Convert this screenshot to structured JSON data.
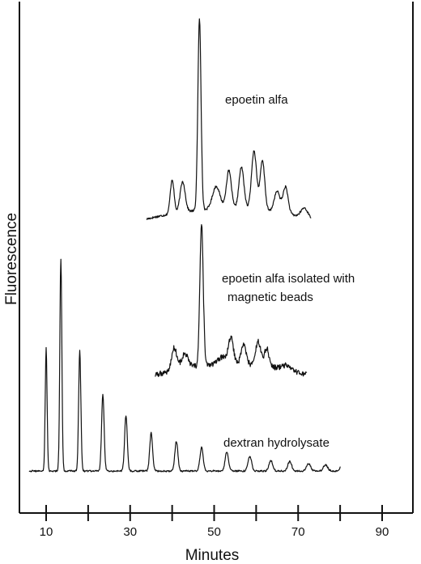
{
  "chart_data": {
    "type": "line",
    "title": "",
    "xlabel": "Minutes",
    "ylabel": "Fluorescence",
    "xlim": [
      5,
      100
    ],
    "x_ticks": [
      10,
      20,
      30,
      40,
      50,
      60,
      70,
      80,
      90
    ],
    "x_tick_labels": [
      {
        "value": 10,
        "label": "10"
      },
      {
        "value": 30,
        "label": "30"
      },
      {
        "value": 50,
        "label": "50"
      },
      {
        "value": 70,
        "label": "70"
      },
      {
        "value": 90,
        "label": "90"
      }
    ],
    "y_ticks": false,
    "grid": false,
    "legend": "none",
    "annotations": [
      {
        "id": "anno-epoetin",
        "text": "epoetin alfa"
      },
      {
        "id": "anno-beads-1",
        "text": "epoetin alfa isolated with"
      },
      {
        "id": "anno-beads-2",
        "text": "magnetic beads"
      },
      {
        "id": "anno-dextran",
        "text": "dextran hydrolysate"
      }
    ],
    "series": [
      {
        "id": "epoetin-alfa",
        "label": "epoetin alfa",
        "x_range": [
          34,
          73
        ],
        "baseline": 0.02,
        "peaks": [
          {
            "x": 40.0,
            "y": 0.18,
            "w": 0.45
          },
          {
            "x": 42.5,
            "y": 0.16,
            "w": 0.6
          },
          {
            "x": 46.5,
            "y": 1.0,
            "w": 0.38
          },
          {
            "x": 50.5,
            "y": 0.12,
            "w": 0.9
          },
          {
            "x": 53.5,
            "y": 0.2,
            "w": 0.6
          },
          {
            "x": 56.5,
            "y": 0.22,
            "w": 0.6
          },
          {
            "x": 59.5,
            "y": 0.31,
            "w": 0.6
          },
          {
            "x": 61.5,
            "y": 0.26,
            "w": 0.55
          },
          {
            "x": 65.0,
            "y": 0.11,
            "w": 0.7
          },
          {
            "x": 67.0,
            "y": 0.14,
            "w": 0.6
          },
          {
            "x": 71.5,
            "y": 0.05,
            "w": 0.8
          }
        ]
      },
      {
        "id": "epoetin-alfa-beads",
        "label": "epoetin alfa isolated with magnetic beads",
        "x_range": [
          36,
          72
        ],
        "baseline": 0.03,
        "peaks": [
          {
            "x": 40.5,
            "y": 0.16,
            "w": 0.6
          },
          {
            "x": 43.0,
            "y": 0.1,
            "w": 0.8
          },
          {
            "x": 47.0,
            "y": 1.0,
            "w": 0.4
          },
          {
            "x": 52.0,
            "y": 0.05,
            "w": 1.0
          },
          {
            "x": 54.0,
            "y": 0.18,
            "w": 0.6
          },
          {
            "x": 57.0,
            "y": 0.14,
            "w": 0.6
          },
          {
            "x": 60.5,
            "y": 0.17,
            "w": 0.6
          },
          {
            "x": 62.5,
            "y": 0.13,
            "w": 0.55
          },
          {
            "x": 67.0,
            "y": 0.03,
            "w": 1.0
          }
        ]
      },
      {
        "id": "dextran-hydrolysate",
        "label": "dextran hydrolysate",
        "x_range": [
          6,
          80
        ],
        "baseline": 0.03,
        "peaks": [
          {
            "x": 10.0,
            "y": 0.58,
            "w": 0.22
          },
          {
            "x": 13.5,
            "y": 1.0,
            "w": 0.24
          },
          {
            "x": 18.0,
            "y": 0.57,
            "w": 0.26
          },
          {
            "x": 23.5,
            "y": 0.36,
            "w": 0.3
          },
          {
            "x": 29.0,
            "y": 0.26,
            "w": 0.32
          },
          {
            "x": 35.0,
            "y": 0.18,
            "w": 0.34
          },
          {
            "x": 41.0,
            "y": 0.14,
            "w": 0.36
          },
          {
            "x": 47.0,
            "y": 0.11,
            "w": 0.38
          },
          {
            "x": 53.0,
            "y": 0.09,
            "w": 0.4
          },
          {
            "x": 58.5,
            "y": 0.07,
            "w": 0.42
          },
          {
            "x": 63.5,
            "y": 0.05,
            "w": 0.44
          },
          {
            "x": 68.0,
            "y": 0.045,
            "w": 0.46
          },
          {
            "x": 72.5,
            "y": 0.035,
            "w": 0.48
          },
          {
            "x": 76.5,
            "y": 0.03,
            "w": 0.5
          },
          {
            "x": 80.5,
            "y": 0.03,
            "w": 0.5
          }
        ]
      }
    ]
  }
}
